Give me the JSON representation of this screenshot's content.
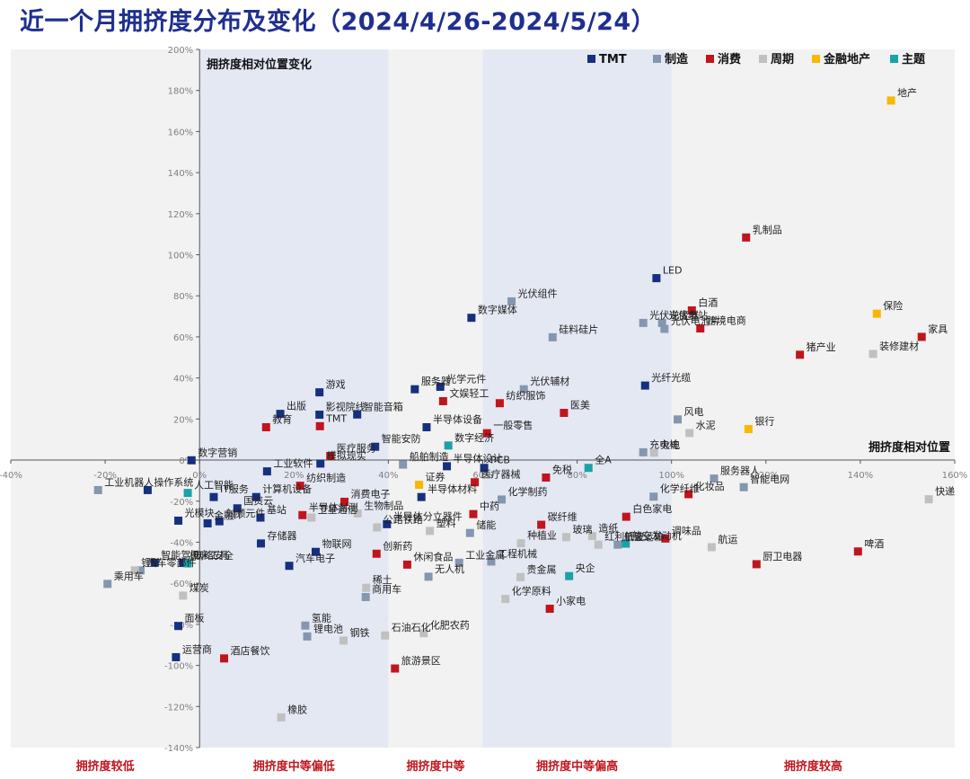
{
  "title": "近一个月拥挤度分布及变化（2024/4/26-2024/5/24）",
  "chart_data": {
    "type": "scatter",
    "title": "近一个月拥挤度分布及变化（2024/4/26-2024/5/24）",
    "xlabel": "拥挤度相对位置",
    "ylabel": "拥挤度相对位置变化",
    "xlim": [
      -0.4,
      1.6
    ],
    "ylim": [
      -1.4,
      2.0
    ],
    "x_ticks": [
      "-40%",
      "-20%",
      "0%",
      "20%",
      "40%",
      "60%",
      "80%",
      "100%",
      "120%",
      "140%",
      "160%"
    ],
    "y_ticks": [
      "200%",
      "180%",
      "160%",
      "140%",
      "120%",
      "100%",
      "80%",
      "60%",
      "40%",
      "20%",
      "0%",
      "-20%",
      "-40%",
      "-60%",
      "-80%",
      "-100%",
      "-120%",
      "-140%"
    ],
    "zones": [
      "拥挤度较低",
      "拥挤度中等偏低",
      "拥挤度中等",
      "拥挤度中等偏高",
      "拥挤度较高"
    ],
    "zone_bounds": [
      -0.4,
      0.0,
      0.4,
      0.6,
      1.0,
      1.6
    ],
    "legend_position": "top-right",
    "grid": false,
    "colors": {
      "TMT": "#16307f",
      "制造": "#8496b0",
      "消费": "#c0151e",
      "周期": "#c0c0c0",
      "金融地产": "#f7b800",
      "主题": "#1ba1a6"
    },
    "series": [
      {
        "name": "TMT",
        "points": [
          {
            "label": "LED",
            "x": 0.968,
            "y": 0.886
          },
          {
            "label": "数字媒体",
            "x": 0.576,
            "y": 0.693
          },
          {
            "label": "光纤光缆",
            "x": 0.944,
            "y": 0.363
          },
          {
            "label": "光学元件",
            "x": 0.51,
            "y": 0.357
          },
          {
            "label": "服务器",
            "x": 0.456,
            "y": 0.345
          },
          {
            "label": "游戏",
            "x": 0.254,
            "y": 0.33
          },
          {
            "label": "出版",
            "x": 0.171,
            "y": 0.225
          },
          {
            "label": "智能音箱",
            "x": 0.334,
            "y": 0.222
          },
          {
            "label": "影视院线",
            "x": 0.254,
            "y": 0.221
          },
          {
            "label": "半导体设备",
            "x": 0.481,
            "y": 0.16
          },
          {
            "label": "智能安防",
            "x": 0.372,
            "y": 0.065
          },
          {
            "label": "数字营销",
            "x": -0.017,
            "y": -0.001
          },
          {
            "label": "模拟现实",
            "x": 0.256,
            "y": -0.017
          },
          {
            "label": "半导体设计",
            "x": 0.524,
            "y": -0.03
          },
          {
            "label": "PCB",
            "x": 0.603,
            "y": -0.038
          },
          {
            "label": "工业软件",
            "x": 0.143,
            "y": -0.055
          },
          {
            "label": "操作系统",
            "x": -0.11,
            "y": -0.146
          },
          {
            "label": "IT服务",
            "x": 0.03,
            "y": -0.18
          },
          {
            "label": "半导体材料",
            "x": 0.47,
            "y": -0.18
          },
          {
            "label": "国资云",
            "x": 0.08,
            "y": -0.235
          },
          {
            "label": "计算机设备",
            "x": 0.12,
            "y": -0.18
          },
          {
            "label": "光模块",
            "x": -0.045,
            "y": -0.295
          },
          {
            "label": "基站",
            "x": 0.129,
            "y": -0.28
          },
          {
            "label": "金融IT",
            "x": 0.017,
            "y": -0.308
          },
          {
            "label": "射频元件",
            "x": 0.042,
            "y": -0.298
          },
          {
            "label": "智能驾驶",
            "x": -0.095,
            "y": -0.5
          },
          {
            "label": "机床工具",
            "x": -0.035,
            "y": -0.5
          },
          {
            "label": "存储器",
            "x": 0.13,
            "y": -0.406
          },
          {
            "label": "物联网",
            "x": 0.246,
            "y": -0.447
          },
          {
            "label": "汽车电子",
            "x": 0.19,
            "y": -0.515
          },
          {
            "label": "半导体分立器件",
            "x": 0.397,
            "y": -0.312
          },
          {
            "label": "面板",
            "x": -0.045,
            "y": -0.808
          },
          {
            "label": "运营商",
            "x": -0.05,
            "y": -0.96
          }
        ]
      },
      {
        "name": "制造",
        "points": [
          {
            "label": "光伏组件",
            "x": 0.661,
            "y": 0.773
          },
          {
            "label": "硅料硅片",
            "x": 0.748,
            "y": 0.598
          },
          {
            "label": "光伏逆变器",
            "x": 0.94,
            "y": 0.668
          },
          {
            "label": "光伏电站",
            "x": 0.98,
            "y": 0.668
          },
          {
            "label": "光伏电池片",
            "x": 0.985,
            "y": 0.639
          },
          {
            "label": "光伏辅材",
            "x": 0.687,
            "y": 0.345
          },
          {
            "label": "风电",
            "x": 1.013,
            "y": 0.198
          },
          {
            "label": "充电桩",
            "x": 0.94,
            "y": 0.038
          },
          {
            "label": "工业机器人",
            "x": -0.215,
            "y": -0.146
          },
          {
            "label": "船舶制造",
            "x": 0.431,
            "y": -0.022
          },
          {
            "label": "化学制药",
            "x": 0.64,
            "y": -0.192
          },
          {
            "label": "化学纤维",
            "x": 0.962,
            "y": -0.178
          },
          {
            "label": "服务器人",
            "x": 1.09,
            "y": -0.09
          },
          {
            "label": "智能电网",
            "x": 1.153,
            "y": -0.132
          },
          {
            "label": "乘用车",
            "x": -0.195,
            "y": -0.603
          },
          {
            "label": "汽车零部件",
            "x": -0.125,
            "y": -0.537
          },
          {
            "label": "储能",
            "x": 0.573,
            "y": -0.355
          },
          {
            "label": "工程机械",
            "x": 0.618,
            "y": -0.494
          },
          {
            "label": "航空运输",
            "x": 0.886,
            "y": -0.412
          },
          {
            "label": "商用车",
            "x": 0.352,
            "y": -0.667
          },
          {
            "label": "氢能",
            "x": 0.224,
            "y": -0.806
          },
          {
            "label": "锂电池",
            "x": 0.228,
            "y": -0.859
          },
          {
            "label": "工业金属",
            "x": 0.55,
            "y": -0.5
          },
          {
            "label": "无人机",
            "x": 0.485,
            "y": -0.568
          }
        ]
      },
      {
        "name": "消费",
        "points": [
          {
            "label": "乳制品",
            "x": 1.158,
            "y": 1.084
          },
          {
            "label": "白酒",
            "x": 1.043,
            "y": 0.729
          },
          {
            "label": "跨境电商",
            "x": 1.061,
            "y": 0.641
          },
          {
            "label": "猪产业",
            "x": 1.272,
            "y": 0.513
          },
          {
            "label": "家具",
            "x": 1.53,
            "y": 0.6
          },
          {
            "label": "文娱轻工",
            "x": 0.516,
            "y": 0.287
          },
          {
            "label": "纺织服饰",
            "x": 0.636,
            "y": 0.277
          },
          {
            "label": "一般零售",
            "x": 0.609,
            "y": 0.131
          },
          {
            "label": "医美",
            "x": 0.772,
            "y": 0.23
          },
          {
            "label": "教育",
            "x": 0.141,
            "y": 0.16
          },
          {
            "label": "TMT",
            "x": 0.255,
            "y": 0.165
          },
          {
            "label": "医疗服务",
            "x": 0.277,
            "y": 0.02
          },
          {
            "label": "纺织制造",
            "x": 0.213,
            "y": -0.125
          },
          {
            "label": "医疗器械",
            "x": 0.583,
            "y": -0.108
          },
          {
            "label": "免税",
            "x": 0.734,
            "y": -0.085
          },
          {
            "label": "化妆品",
            "x": 1.036,
            "y": -0.166
          },
          {
            "label": "消费电子",
            "x": 0.307,
            "y": -0.203
          },
          {
            "label": "半导体封测",
            "x": 0.218,
            "y": -0.268
          },
          {
            "label": "中药",
            "x": 0.58,
            "y": -0.263
          },
          {
            "label": "白色家电",
            "x": 0.904,
            "y": -0.276
          },
          {
            "label": "碳纤维",
            "x": 0.724,
            "y": -0.315
          },
          {
            "label": "调味品",
            "x": 0.987,
            "y": -0.382
          },
          {
            "label": "创新药",
            "x": 0.375,
            "y": -0.456
          },
          {
            "label": "休闲食品",
            "x": 0.44,
            "y": -0.509
          },
          {
            "label": "小家电",
            "x": 0.742,
            "y": -0.724
          },
          {
            "label": "啤酒",
            "x": 1.395,
            "y": -0.445
          },
          {
            "label": "厨卫电器",
            "x": 1.18,
            "y": -0.507
          },
          {
            "label": "酒店餐饮",
            "x": 0.052,
            "y": -0.966
          },
          {
            "label": "旅游景区",
            "x": 0.414,
            "y": -1.015
          }
        ]
      },
      {
        "name": "周期",
        "points": [
          {
            "label": "火电",
            "x": 0.963,
            "y": 0.036
          },
          {
            "label": "水泥",
            "x": 1.038,
            "y": 0.132
          },
          {
            "label": "装修建材",
            "x": 1.427,
            "y": 0.517
          },
          {
            "label": "快递",
            "x": 1.545,
            "y": -0.191
          },
          {
            "label": "航运",
            "x": 1.085,
            "y": -0.424
          },
          {
            "label": "公路铁路",
            "x": 0.376,
            "y": -0.328
          },
          {
            "label": "塑料",
            "x": 0.488,
            "y": -0.345
          },
          {
            "label": "卫星通信",
            "x": 0.237,
            "y": -0.28
          },
          {
            "label": "生物制品",
            "x": 0.335,
            "y": -0.26
          },
          {
            "label": "种植业",
            "x": 0.681,
            "y": -0.405
          },
          {
            "label": "玻璃",
            "x": 0.777,
            "y": -0.375
          },
          {
            "label": "造纸",
            "x": 0.832,
            "y": -0.37
          },
          {
            "label": "红利低波",
            "x": 0.845,
            "y": -0.412
          },
          {
            "label": "化学原料",
            "x": 0.648,
            "y": -0.676
          },
          {
            "label": "贵金属",
            "x": 0.68,
            "y": -0.57
          },
          {
            "label": "稀土",
            "x": 0.353,
            "y": -0.622
          },
          {
            "label": "石油石化",
            "x": 0.393,
            "y": -0.854
          },
          {
            "label": "钢铁",
            "x": 0.305,
            "y": -0.879
          },
          {
            "label": "化肥农药",
            "x": 0.475,
            "y": -0.843
          },
          {
            "label": "煤炭",
            "x": -0.035,
            "y": -0.66
          },
          {
            "label": "锂矿",
            "x": -0.137,
            "y": -0.537
          },
          {
            "label": "橡胶",
            "x": 0.173,
            "y": -1.253
          }
        ]
      },
      {
        "name": "金融地产",
        "points": [
          {
            "label": "地产",
            "x": 1.465,
            "y": 1.751
          },
          {
            "label": "保险",
            "x": 1.435,
            "y": 0.713
          },
          {
            "label": "银行",
            "x": 1.163,
            "y": 0.151
          },
          {
            "label": "证券",
            "x": 0.465,
            "y": -0.12
          }
        ]
      },
      {
        "name": "主题",
        "points": [
          {
            "label": "数字经济",
            "x": 0.527,
            "y": 0.071
          },
          {
            "label": "全A",
            "x": 0.824,
            "y": -0.038
          },
          {
            "label": "人工智能",
            "x": -0.025,
            "y": -0.16
          },
          {
            "label": "网络安全",
            "x": -0.025,
            "y": -0.503
          },
          {
            "label": "航空发动机",
            "x": 0.903,
            "y": -0.407
          },
          {
            "label": "央企",
            "x": 0.783,
            "y": -0.565
          }
        ]
      }
    ]
  }
}
